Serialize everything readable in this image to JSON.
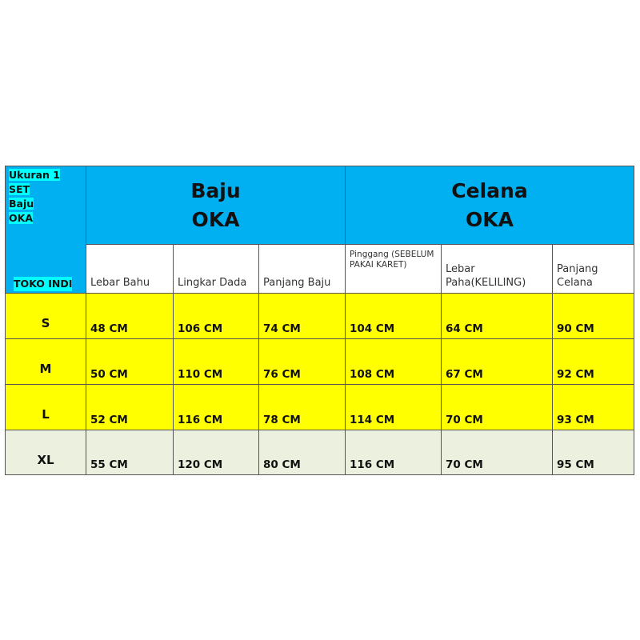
{
  "corner": {
    "lines": [
      "Ukuran 1",
      "SET",
      "Baju",
      "OKA"
    ],
    "store": "TOKO INDI"
  },
  "groups": {
    "baju": [
      "Baju",
      "OKA"
    ],
    "celana": [
      "Celana",
      "OKA"
    ]
  },
  "columns": [
    "Lebar Bahu",
    "Lingkar Dada",
    "Panjang Baju",
    "Pinggang (SEBELUM PAKAI KARET)",
    "Lebar Paha(KELILING)",
    "Panjang Celana"
  ],
  "rows": [
    {
      "size": "S",
      "values": [
        "48 CM",
        "106 CM",
        "74 CM",
        "104 CM",
        "64 CM",
        "90 CM"
      ]
    },
    {
      "size": "M",
      "values": [
        "50 CM",
        "110 CM",
        "76 CM",
        "108 CM",
        "67 CM",
        "92 CM"
      ]
    },
    {
      "size": "L",
      "values": [
        "52 CM",
        "116 CM",
        "78 CM",
        "114 CM",
        "70 CM",
        "93 CM"
      ]
    },
    {
      "size": "XL",
      "values": [
        "55 CM",
        "120 CM",
        "80 CM",
        "116 CM",
        "70 CM",
        "95 CM"
      ]
    }
  ],
  "colors": {
    "header": "#00b0f0",
    "highlight": "#00ffff",
    "rows_s_m_l": "#ffff00",
    "row_xl": "#ebf1de"
  }
}
